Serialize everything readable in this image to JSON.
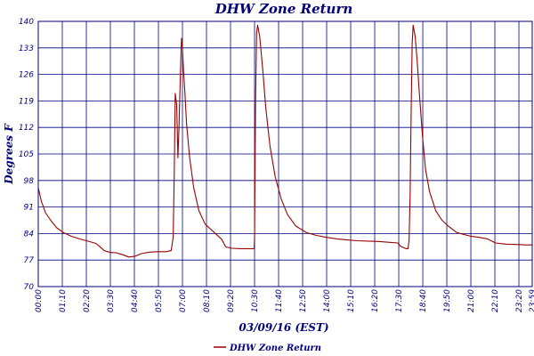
{
  "chart_data": {
    "type": "line",
    "title": "DHW Zone Return",
    "xlabel": "03/09/16 (EST)",
    "ylabel": "Degrees F",
    "ylim": [
      70,
      140
    ],
    "xlim": [
      0,
      23.98
    ],
    "y_ticks": [
      "70",
      "77",
      "84",
      "91",
      "98",
      "105",
      "112",
      "119",
      "126",
      "133",
      "140"
    ],
    "x_ticks": [
      {
        "v": 0.0,
        "label": "00:00"
      },
      {
        "v": 1.1667,
        "label": "01:10"
      },
      {
        "v": 2.3333,
        "label": "02:20"
      },
      {
        "v": 3.5,
        "label": "03:30"
      },
      {
        "v": 4.6667,
        "label": "04:40"
      },
      {
        "v": 5.8333,
        "label": "05:50"
      },
      {
        "v": 7.0,
        "label": "07:00"
      },
      {
        "v": 8.1667,
        "label": "08:10"
      },
      {
        "v": 9.3333,
        "label": "09:20"
      },
      {
        "v": 10.5,
        "label": "10:30"
      },
      {
        "v": 11.6667,
        "label": "11:40"
      },
      {
        "v": 12.8333,
        "label": "12:50"
      },
      {
        "v": 14.0,
        "label": "14:00"
      },
      {
        "v": 15.1667,
        "label": "15:10"
      },
      {
        "v": 16.3333,
        "label": "16:20"
      },
      {
        "v": 17.5,
        "label": "17:30"
      },
      {
        "v": 18.6667,
        "label": "18:40"
      },
      {
        "v": 19.8333,
        "label": "19:50"
      },
      {
        "v": 21.0,
        "label": "21:00"
      },
      {
        "v": 22.1667,
        "label": "22:10"
      },
      {
        "v": 23.3333,
        "label": "23:20"
      },
      {
        "v": 23.98,
        "label": "23:59"
      }
    ],
    "grid": true,
    "legend_position": "bottom",
    "series": [
      {
        "name": "DHW Zone Return",
        "color": "#990000",
        "points": [
          [
            0.0,
            96
          ],
          [
            0.15,
            92.5
          ],
          [
            0.35,
            89.5
          ],
          [
            0.6,
            87.5
          ],
          [
            0.9,
            85.5
          ],
          [
            1.2,
            84.3
          ],
          [
            1.6,
            83.3
          ],
          [
            2.0,
            82.6
          ],
          [
            2.4,
            82.0
          ],
          [
            2.8,
            81.4
          ],
          [
            3.0,
            80.5
          ],
          [
            3.2,
            79.5
          ],
          [
            3.5,
            79.0
          ],
          [
            3.8,
            78.9
          ],
          [
            4.1,
            78.4
          ],
          [
            4.4,
            77.8
          ],
          [
            4.7,
            78.0
          ],
          [
            5.0,
            78.7
          ],
          [
            5.4,
            79.1
          ],
          [
            5.8,
            79.2
          ],
          [
            6.2,
            79.2
          ],
          [
            6.45,
            79.5
          ],
          [
            6.55,
            83
          ],
          [
            6.6,
            100
          ],
          [
            6.65,
            121
          ],
          [
            6.72,
            118
          ],
          [
            6.78,
            104
          ],
          [
            6.83,
            112
          ],
          [
            6.9,
            126
          ],
          [
            6.95,
            135.5
          ],
          [
            7.0,
            133
          ],
          [
            7.05,
            127
          ],
          [
            7.12,
            121
          ],
          [
            7.2,
            113
          ],
          [
            7.35,
            104
          ],
          [
            7.55,
            96
          ],
          [
            7.8,
            90
          ],
          [
            8.1,
            86.5
          ],
          [
            8.5,
            84.5
          ],
          [
            8.9,
            82.5
          ],
          [
            9.1,
            80.5
          ],
          [
            9.4,
            80.1
          ],
          [
            9.8,
            80.0
          ],
          [
            10.3,
            80.0
          ],
          [
            10.48,
            80.0
          ],
          [
            10.5,
            83
          ],
          [
            10.52,
            98
          ],
          [
            10.55,
            120
          ],
          [
            10.6,
            137
          ],
          [
            10.65,
            139
          ],
          [
            10.75,
            136
          ],
          [
            10.9,
            127
          ],
          [
            11.05,
            117
          ],
          [
            11.25,
            107
          ],
          [
            11.5,
            99
          ],
          [
            11.8,
            93
          ],
          [
            12.1,
            89
          ],
          [
            12.5,
            86
          ],
          [
            13.0,
            84.3
          ],
          [
            13.5,
            83.5
          ],
          [
            14.0,
            83.0
          ],
          [
            14.5,
            82.6
          ],
          [
            15.0,
            82.3
          ],
          [
            15.5,
            82.1
          ],
          [
            16.0,
            82.0
          ],
          [
            16.5,
            81.9
          ],
          [
            17.0,
            81.7
          ],
          [
            17.45,
            81.5
          ],
          [
            17.6,
            80.6
          ],
          [
            17.85,
            80.0
          ],
          [
            17.95,
            80.0
          ],
          [
            18.0,
            82
          ],
          [
            18.05,
            94
          ],
          [
            18.1,
            115
          ],
          [
            18.15,
            134
          ],
          [
            18.2,
            139
          ],
          [
            18.3,
            136
          ],
          [
            18.4,
            129
          ],
          [
            18.5,
            121
          ],
          [
            18.65,
            110
          ],
          [
            18.8,
            101
          ],
          [
            19.0,
            95
          ],
          [
            19.3,
            90
          ],
          [
            19.6,
            87.5
          ],
          [
            19.9,
            86
          ],
          [
            20.3,
            84.3
          ],
          [
            20.7,
            83.7
          ],
          [
            21.0,
            83.3
          ],
          [
            21.4,
            83.0
          ],
          [
            21.8,
            82.6
          ],
          [
            22.2,
            81.5
          ],
          [
            22.7,
            81.2
          ],
          [
            23.2,
            81.1
          ],
          [
            23.7,
            81.0
          ],
          [
            23.98,
            81.0
          ]
        ]
      }
    ]
  }
}
